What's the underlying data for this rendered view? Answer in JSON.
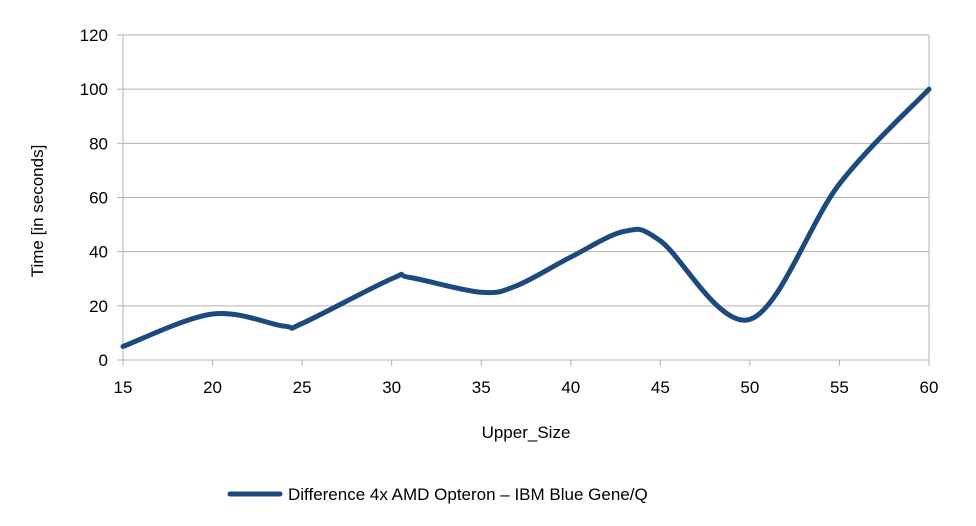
{
  "chart_data": {
    "type": "line",
    "x": [
      15,
      20,
      24,
      25,
      30,
      31,
      35,
      37,
      40,
      43,
      45,
      50,
      55,
      60
    ],
    "series": [
      {
        "name": "Difference 4x AMD Opteron – IBM Blue Gene/Q",
        "color": "#1c4a7f",
        "values": [
          5,
          17,
          12.5,
          13.5,
          30,
          30.5,
          25,
          27.5,
          38,
          47.5,
          44,
          15,
          65,
          100
        ]
      }
    ],
    "xlabel": "Upper_Size",
    "ylabel": "Time [in seconds]",
    "xticks": [
      15,
      20,
      25,
      30,
      35,
      40,
      45,
      50,
      55,
      60
    ],
    "yticks": [
      0,
      20,
      40,
      60,
      80,
      100,
      120
    ],
    "xlim": [
      15,
      60
    ],
    "ylim": [
      0,
      120
    ],
    "grid": "horizontal",
    "legend_position": "bottom-center",
    "smooth": true
  }
}
